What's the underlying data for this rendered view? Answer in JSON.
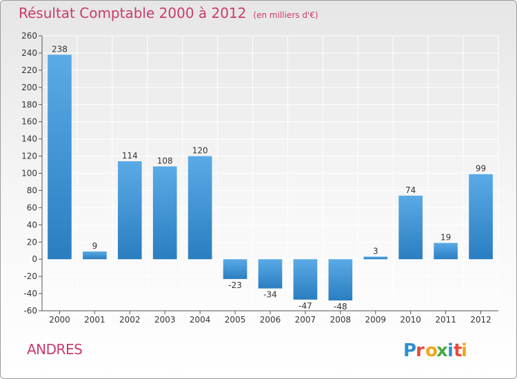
{
  "header": {
    "title": "Résultat Comptable 2000 à 2012",
    "subtitle": "(en milliers d'€)"
  },
  "commune": "ANDRES",
  "logo": {
    "text": "Proxiti",
    "colors": [
      "#2f8fce",
      "#e94b3c",
      "#f2a51a",
      "#4aa84a",
      "#2f8fce",
      "#e94b3c",
      "#f2a51a"
    ]
  },
  "colors": {
    "bar_light": "#5aaae6",
    "bar_dark": "#2a7ec0",
    "title": "#c83a6e",
    "grid": "#ffffff"
  },
  "chart_data": {
    "type": "bar",
    "categories": [
      "2000",
      "2001",
      "2002",
      "2003",
      "2004",
      "2005",
      "2006",
      "2007",
      "2008",
      "2009",
      "2010",
      "2011",
      "2012"
    ],
    "values": [
      238,
      9,
      114,
      108,
      120,
      -23,
      -34,
      -47,
      -48,
      3,
      74,
      19,
      99
    ],
    "ylim": [
      -60,
      260
    ],
    "yticks": [
      -60,
      -40,
      -20,
      0,
      20,
      40,
      60,
      80,
      100,
      120,
      140,
      160,
      180,
      200,
      220,
      240,
      260
    ],
    "grid": true,
    "legend": "none"
  }
}
